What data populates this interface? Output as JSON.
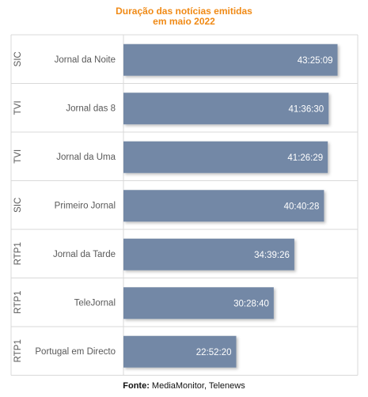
{
  "chart_data": {
    "type": "bar",
    "orientation": "horizontal",
    "title_line1": "Duração das notícias emitidas",
    "title_line2": "em maio 2022",
    "xlabel": "",
    "ylabel": "",
    "grid": true,
    "value_unit": "hours",
    "categories": [
      {
        "group": "SIC",
        "label": "Jornal da Noite",
        "value_label": "43:25:09",
        "value": 43.419
      },
      {
        "group": "TVI",
        "label": "Jornal das 8",
        "value_label": "41:36:30",
        "value": 41.608
      },
      {
        "group": "TVI",
        "label": "Jornal da Uma",
        "value_label": "41:26:29",
        "value": 41.441
      },
      {
        "group": "SIC",
        "label": "Primeiro Jornal",
        "value_label": "40:40:28",
        "value": 40.674
      },
      {
        "group": "RTP1",
        "label": "Jornal da Tarde",
        "value_label": "34:39:26",
        "value": 34.657
      },
      {
        "group": "RTP1",
        "label": "TeleJornal",
        "value_label": "30:28:40",
        "value": 30.478
      },
      {
        "group": "RTP1",
        "label": "Portugal em Directo",
        "value_label": "22:52:20",
        "value": 22.872
      }
    ],
    "colors": {
      "bar": "#7388a6",
      "title": "#f08a16",
      "grid": "#d9d9d9",
      "text": "#595959"
    }
  },
  "source": {
    "label": "Fonte:",
    "text": "MediaMonitor, Telenews"
  }
}
